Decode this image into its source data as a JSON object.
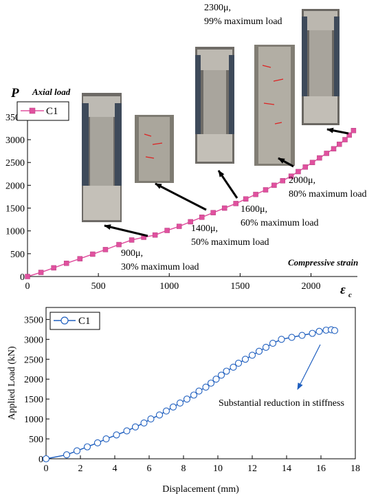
{
  "chart_data": [
    {
      "type": "line",
      "y_axis_symbol": "P",
      "y_axis_label": "Axial load",
      "x_axis_symbol": "ε",
      "x_axis_symbol_sub": "c",
      "x_axis_label": "Compressive strain",
      "xlim": [
        0,
        2400
      ],
      "ylim": [
        0,
        3800
      ],
      "x_ticks": [
        "0",
        "500",
        "1000",
        "1500",
        "2000"
      ],
      "y_ticks": [
        "0",
        "500",
        "1000",
        "1500",
        "2000",
        "2500",
        "3000",
        "3500"
      ],
      "legend": "top-left",
      "grid": false,
      "color": "#e0519f",
      "series": [
        {
          "name": "C1",
          "marker": "square",
          "x": [
            0,
            95,
            185,
            275,
            370,
            460,
            550,
            645,
            735,
            820,
            900,
            985,
            1070,
            1150,
            1230,
            1310,
            1390,
            1470,
            1540,
            1610,
            1680,
            1740,
            1800,
            1860,
            1910,
            1960,
            2010,
            2060,
            2110,
            2160,
            2200,
            2240,
            2270,
            2300
          ],
          "y": [
            0,
            90,
            190,
            290,
            390,
            490,
            590,
            700,
            800,
            860,
            910,
            1010,
            1100,
            1200,
            1300,
            1400,
            1500,
            1600,
            1700,
            1800,
            1900,
            2000,
            2100,
            2200,
            2300,
            2400,
            2500,
            2600,
            2700,
            2800,
            2900,
            3000,
            3100,
            3200
          ]
        }
      ],
      "annotations": [
        {
          "line1": "900μ,",
          "line2": "30% maximum load"
        },
        {
          "line1": "1400μ,",
          "line2": "50% maximum load"
        },
        {
          "line1": "1600μ,",
          "line2": "60% maximum load"
        },
        {
          "line1": "2000μ,",
          "line2": "80% maximum load"
        },
        {
          "line1": "2300μ,",
          "line2": "99% maximum load"
        }
      ]
    },
    {
      "type": "line",
      "xlabel": "Displacement (mm)",
      "ylabel": "Applied Load (kN)",
      "xlim": [
        0,
        18
      ],
      "ylim": [
        0,
        3800
      ],
      "x_ticks": [
        "0",
        "2",
        "4",
        "6",
        "8",
        "10",
        "12",
        "14",
        "16",
        "18"
      ],
      "y_ticks": [
        "0",
        "500",
        "1000",
        "1500",
        "2000",
        "2500",
        "3000",
        "3500"
      ],
      "legend": "top-left",
      "grid": false,
      "color": "#1f5fbf",
      "series": [
        {
          "name": "C1",
          "marker": "circle",
          "x": [
            0,
            1.2,
            1.8,
            2.4,
            3.0,
            3.5,
            4.1,
            4.7,
            5.2,
            5.7,
            6.1,
            6.6,
            7.0,
            7.4,
            7.8,
            8.2,
            8.6,
            8.9,
            9.3,
            9.6,
            9.9,
            10.2,
            10.5,
            10.9,
            11.2,
            11.6,
            12.0,
            12.4,
            12.8,
            13.2,
            13.7,
            14.3,
            14.9,
            15.5,
            15.9,
            16.3,
            16.6,
            16.8
          ],
          "y": [
            0,
            100,
            200,
            300,
            400,
            500,
            600,
            700,
            800,
            900,
            1000,
            1100,
            1200,
            1300,
            1400,
            1500,
            1600,
            1700,
            1800,
            1900,
            2000,
            2100,
            2200,
            2300,
            2400,
            2500,
            2600,
            2700,
            2800,
            2900,
            3000,
            3050,
            3100,
            3150,
            3200,
            3230,
            3240,
            3220
          ]
        }
      ],
      "annotations": [
        {
          "text": "Substantial reduction in stiffness"
        }
      ]
    }
  ]
}
